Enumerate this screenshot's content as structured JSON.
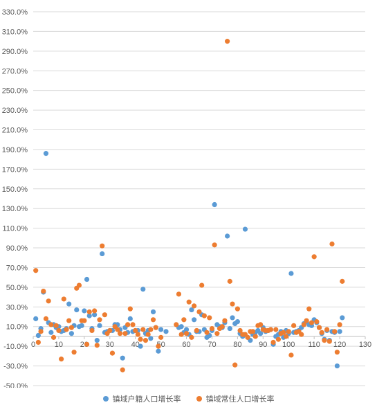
{
  "chart_data": {
    "type": "scatter",
    "title": "",
    "xlabel": "",
    "ylabel": "",
    "xlim": [
      0,
      130
    ],
    "ylim": [
      -50,
      330
    ],
    "x_ticks": [
      0,
      10,
      20,
      30,
      40,
      50,
      60,
      70,
      80,
      90,
      100,
      110,
      120,
      130
    ],
    "y_ticks": [
      -50,
      -30,
      -10,
      10,
      30,
      50,
      70,
      90,
      110,
      130,
      150,
      170,
      190,
      210,
      230,
      250,
      270,
      290,
      310,
      330
    ],
    "x_tick_labels": [
      "0",
      "10",
      "20",
      "30",
      "40",
      "50",
      "60",
      "70",
      "80",
      "90",
      "100",
      "110",
      "120",
      "130"
    ],
    "y_tick_labels": [
      "-50.0%",
      "-30.0%",
      "-10.0%",
      "10.0%",
      "30.0%",
      "50.0%",
      "70.0%",
      "90.0%",
      "110.0%",
      "130.0%",
      "150.0%",
      "170.0%",
      "190.0%",
      "210.0%",
      "230.0%",
      "250.0%",
      "270.0%",
      "290.0%",
      "310.0%",
      "330.0%"
    ],
    "grid": true,
    "legend_position": "bottom",
    "series": [
      {
        "name": "镇域户籍人口增长率",
        "color": "#5B9BD5",
        "points": [
          [
            1,
            18
          ],
          [
            2,
            1
          ],
          [
            3,
            8
          ],
          [
            4,
            45
          ],
          [
            5,
            186
          ],
          [
            6,
            14
          ],
          [
            7,
            4
          ],
          [
            8,
            12
          ],
          [
            9,
            9
          ],
          [
            10,
            10
          ],
          [
            11,
            5
          ],
          [
            12,
            6
          ],
          [
            13,
            8
          ],
          [
            14,
            33
          ],
          [
            15,
            3
          ],
          [
            16,
            11
          ],
          [
            17,
            27
          ],
          [
            18,
            10
          ],
          [
            19,
            11
          ],
          [
            20,
            26
          ],
          [
            21,
            58
          ],
          [
            22,
            21
          ],
          [
            23,
            8
          ],
          [
            24,
            22
          ],
          [
            25,
            -4
          ],
          [
            26,
            11
          ],
          [
            27,
            84
          ],
          [
            28,
            4
          ],
          [
            29,
            5
          ],
          [
            30,
            6
          ],
          [
            31,
            6
          ],
          [
            32,
            12
          ],
          [
            33,
            12
          ],
          [
            34,
            7
          ],
          [
            35,
            -22
          ],
          [
            36,
            9
          ],
          [
            37,
            4
          ],
          [
            38,
            18
          ],
          [
            39,
            5
          ],
          [
            40,
            6
          ],
          [
            41,
            6
          ],
          [
            42,
            -10
          ],
          [
            43,
            48
          ],
          [
            44,
            3
          ],
          [
            45,
            6
          ],
          [
            46,
            -2
          ],
          [
            47,
            25
          ],
          [
            48,
            9
          ],
          [
            49,
            -15
          ],
          [
            50,
            7
          ],
          [
            52,
            5
          ],
          [
            57,
            9
          ],
          [
            58,
            10
          ],
          [
            59,
            4
          ],
          [
            60,
            7
          ],
          [
            61,
            2
          ],
          [
            62,
            27
          ],
          [
            63,
            17
          ],
          [
            64,
            5
          ],
          [
            65,
            5
          ],
          [
            66,
            22
          ],
          [
            67,
            7
          ],
          [
            68,
            -1
          ],
          [
            69,
            1
          ],
          [
            70,
            6
          ],
          [
            71,
            134
          ],
          [
            72,
            12
          ],
          [
            73,
            10
          ],
          [
            74,
            9
          ],
          [
            75,
            14
          ],
          [
            76,
            102
          ],
          [
            77,
            8
          ],
          [
            78,
            19
          ],
          [
            79,
            13
          ],
          [
            80,
            15
          ],
          [
            81,
            3
          ],
          [
            82,
            0
          ],
          [
            83,
            109
          ],
          [
            84,
            -1
          ],
          [
            85,
            -4
          ],
          [
            86,
            2
          ],
          [
            87,
            4
          ],
          [
            88,
            6
          ],
          [
            89,
            3
          ],
          [
            90,
            9
          ],
          [
            91,
            5
          ],
          [
            92,
            6
          ],
          [
            93,
            7
          ],
          [
            94,
            -8
          ],
          [
            95,
            0
          ],
          [
            96,
            2
          ],
          [
            97,
            5
          ],
          [
            98,
            -1
          ],
          [
            99,
            6
          ],
          [
            100,
            3
          ],
          [
            101,
            64
          ],
          [
            102,
            4
          ],
          [
            103,
            5
          ],
          [
            104,
            6
          ],
          [
            105,
            9
          ],
          [
            106,
            13
          ],
          [
            107,
            15
          ],
          [
            108,
            12
          ],
          [
            109,
            11
          ],
          [
            110,
            17
          ],
          [
            111,
            14
          ],
          [
            112,
            9
          ],
          [
            113,
            3
          ],
          [
            114,
            -3
          ],
          [
            115,
            6
          ],
          [
            116,
            -4
          ],
          [
            117,
            5
          ],
          [
            118,
            4
          ],
          [
            119,
            -30
          ],
          [
            120,
            5
          ],
          [
            121,
            19
          ]
        ]
      },
      {
        "name": "镇域常住人口增长率",
        "color": "#ED7D31",
        "points": [
          [
            1,
            67
          ],
          [
            2,
            -6
          ],
          [
            3,
            5
          ],
          [
            4,
            46
          ],
          [
            5,
            18
          ],
          [
            6,
            36
          ],
          [
            7,
            12
          ],
          [
            8,
            -1
          ],
          [
            9,
            11
          ],
          [
            10,
            6
          ],
          [
            11,
            -23
          ],
          [
            12,
            38
          ],
          [
            13,
            7
          ],
          [
            14,
            16
          ],
          [
            15,
            9
          ],
          [
            16,
            -16
          ],
          [
            17,
            49
          ],
          [
            18,
            52
          ],
          [
            19,
            16
          ],
          [
            20,
            16
          ],
          [
            21,
            -8
          ],
          [
            22,
            25
          ],
          [
            23,
            6
          ],
          [
            24,
            26
          ],
          [
            25,
            -9
          ],
          [
            26,
            17
          ],
          [
            27,
            92
          ],
          [
            28,
            22
          ],
          [
            29,
            3
          ],
          [
            30,
            6
          ],
          [
            31,
            -17
          ],
          [
            32,
            10
          ],
          [
            33,
            7
          ],
          [
            34,
            3
          ],
          [
            35,
            -34
          ],
          [
            36,
            3
          ],
          [
            37,
            12
          ],
          [
            38,
            28
          ],
          [
            39,
            12
          ],
          [
            40,
            6
          ],
          [
            41,
            2
          ],
          [
            42,
            -3
          ],
          [
            43,
            7
          ],
          [
            44,
            -4
          ],
          [
            45,
            2
          ],
          [
            46,
            7
          ],
          [
            47,
            17
          ],
          [
            48,
            9
          ],
          [
            49,
            -10
          ],
          [
            50,
            -1
          ],
          [
            56,
            12
          ],
          [
            57,
            43
          ],
          [
            58,
            2
          ],
          [
            59,
            17
          ],
          [
            60,
            3
          ],
          [
            61,
            35
          ],
          [
            62,
            -1
          ],
          [
            63,
            31
          ],
          [
            64,
            6
          ],
          [
            65,
            25
          ],
          [
            66,
            52
          ],
          [
            67,
            21
          ],
          [
            68,
            4
          ],
          [
            69,
            19
          ],
          [
            70,
            8
          ],
          [
            71,
            93
          ],
          [
            72,
            3
          ],
          [
            73,
            8
          ],
          [
            74,
            10
          ],
          [
            75,
            16
          ],
          [
            76,
            300
          ],
          [
            77,
            56
          ],
          [
            78,
            33
          ],
          [
            79,
            -29
          ],
          [
            80,
            28
          ],
          [
            81,
            6
          ],
          [
            82,
            2
          ],
          [
            83,
            2
          ],
          [
            84,
            -1
          ],
          [
            85,
            5
          ],
          [
            86,
            5
          ],
          [
            87,
            0
          ],
          [
            88,
            11
          ],
          [
            89,
            12
          ],
          [
            90,
            7
          ],
          [
            91,
            6
          ],
          [
            92,
            6
          ],
          [
            93,
            7
          ],
          [
            94,
            -6
          ],
          [
            95,
            7
          ],
          [
            96,
            -3
          ],
          [
            97,
            3
          ],
          [
            98,
            4
          ],
          [
            99,
            0
          ],
          [
            100,
            5
          ],
          [
            101,
            -19
          ],
          [
            102,
            11
          ],
          [
            103,
            4
          ],
          [
            104,
            5
          ],
          [
            105,
            2
          ],
          [
            106,
            12
          ],
          [
            107,
            16
          ],
          [
            108,
            28
          ],
          [
            109,
            14
          ],
          [
            110,
            81
          ],
          [
            111,
            15
          ],
          [
            112,
            9
          ],
          [
            113,
            4
          ],
          [
            114,
            -4
          ],
          [
            115,
            7
          ],
          [
            116,
            -5
          ],
          [
            117,
            94
          ],
          [
            118,
            5
          ],
          [
            119,
            -16
          ],
          [
            120,
            12
          ],
          [
            121,
            56
          ]
        ]
      }
    ]
  }
}
